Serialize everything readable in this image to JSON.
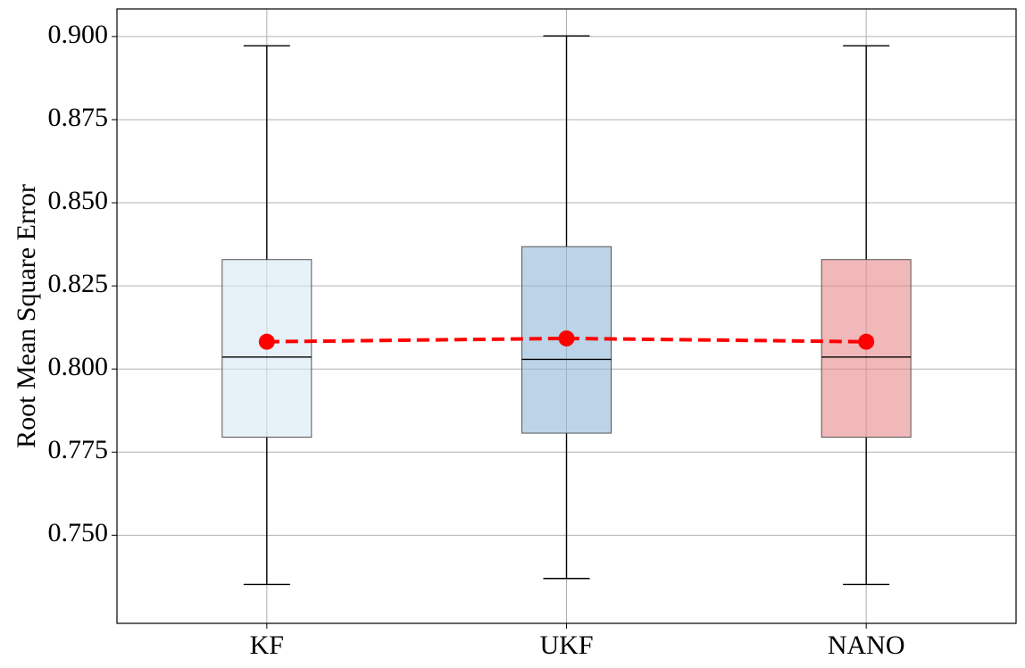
{
  "chart_data": {
    "type": "box",
    "ylabel": "Root Mean Square Error",
    "xlabel": "",
    "ylim": [
      0.7235,
      0.9083
    ],
    "yticks": [
      "0.750",
      "0.775",
      "0.800",
      "0.825",
      "0.850",
      "0.875",
      "0.900"
    ],
    "grid": true,
    "categories": [
      "KF",
      "UKF",
      "NANO"
    ],
    "boxes": [
      {
        "category": "KF",
        "whisker_low": 0.7352,
        "q1": 0.7795,
        "median": 0.8036,
        "q3": 0.8329,
        "whisker_high": 0.8972,
        "color": "#d6eaf3"
      },
      {
        "category": "UKF",
        "whisker_low": 0.737,
        "q1": 0.7807,
        "median": 0.8029,
        "q3": 0.8368,
        "whisker_high": 0.9002,
        "color": "#8fb8d9"
      },
      {
        "category": "NANO",
        "whisker_low": 0.7352,
        "q1": 0.7795,
        "median": 0.8036,
        "q3": 0.8329,
        "whisker_high": 0.8972,
        "color": "#e8898c"
      }
    ],
    "mean_series": {
      "values": [
        0.8082,
        0.8092,
        0.8082
      ],
      "color": "#ff0000",
      "style": "dashed",
      "marker": "circle"
    }
  }
}
